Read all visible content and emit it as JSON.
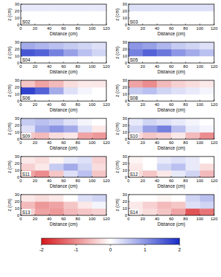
{
  "chart_data": [
    {
      "type": "heatmap",
      "title": "S02",
      "xlabel": "Distance (cm)",
      "ylabel": "z (cm)",
      "xlim": [
        0,
        120
      ],
      "ylim": [
        0,
        30
      ],
      "xticks": [
        0,
        20,
        40,
        60,
        80,
        100,
        120
      ],
      "yticks": [
        0,
        10,
        20,
        30
      ],
      "x_edges": [
        0,
        20,
        40,
        60,
        80,
        100,
        120
      ],
      "y_edges": [
        0,
        10,
        20,
        30
      ],
      "cells": [
        [
          0,
          0,
          0,
          0,
          0,
          0
        ],
        [
          0,
          0,
          0,
          0,
          0,
          0
        ],
        [
          0.2,
          0.2,
          0.2,
          0.2,
          0.2,
          0.2
        ]
      ]
    },
    {
      "type": "heatmap",
      "title": "S03",
      "xlabel": "Distance (cm)",
      "ylabel": "z (cm)",
      "xlim": [
        0,
        120
      ],
      "ylim": [
        0,
        30
      ],
      "xticks": [
        0,
        20,
        40,
        60,
        80,
        100,
        120
      ],
      "yticks": [
        0,
        10,
        20,
        30
      ],
      "x_edges": [
        0,
        20,
        40,
        60,
        80,
        100,
        120
      ],
      "y_edges": [
        0,
        10,
        20,
        30
      ],
      "cells": [
        [
          0,
          0,
          0,
          0,
          0,
          0
        ],
        [
          0,
          0,
          0,
          0,
          0,
          0
        ],
        [
          0.3,
          0.3,
          0.3,
          0.3,
          0.3,
          0.3
        ]
      ]
    },
    {
      "type": "heatmap",
      "title": "S04",
      "xlabel": "Distance (cm)",
      "ylabel": "z (cm)",
      "xlim": [
        0,
        120
      ],
      "ylim": [
        0,
        30
      ],
      "xticks": [
        0,
        20,
        40,
        60,
        80,
        100,
        120
      ],
      "yticks": [
        0,
        10,
        20,
        30
      ],
      "x_edges": [
        0,
        20,
        40,
        60,
        80,
        100,
        120
      ],
      "y_edges": [
        0,
        10,
        20,
        30
      ],
      "cells": [
        [
          0,
          0,
          0,
          0,
          0,
          0
        ],
        [
          1.6,
          1.5,
          1.2,
          0.9,
          0.6,
          0.4
        ],
        [
          0.8,
          0.7,
          0.6,
          0.5,
          0.4,
          0.3
        ]
      ]
    },
    {
      "type": "heatmap",
      "title": "S05",
      "xlabel": "Distance (cm)",
      "ylabel": "z (cm)",
      "xlim": [
        0,
        120
      ],
      "ylim": [
        0,
        30
      ],
      "xticks": [
        0,
        20,
        40,
        60,
        80,
        100,
        120
      ],
      "yticks": [
        0,
        10,
        20,
        30
      ],
      "x_edges": [
        0,
        20,
        40,
        60,
        80,
        100,
        120
      ],
      "y_edges": [
        0,
        10,
        20,
        30
      ],
      "cells": [
        [
          0,
          0,
          0,
          0,
          0,
          0
        ],
        [
          1.2,
          1.5,
          1.3,
          1.0,
          0.8,
          0.6
        ],
        [
          1.0,
          0.9,
          0.7,
          0.5,
          0.4,
          0.3
        ]
      ]
    },
    {
      "type": "heatmap",
      "title": "S06",
      "xlabel": "Distance (cm)",
      "ylabel": "z (cm)",
      "xlim": [
        0,
        120
      ],
      "ylim": [
        0,
        30
      ],
      "xticks": [
        0,
        20,
        40,
        60,
        80,
        100,
        120
      ],
      "yticks": [
        0,
        10,
        20,
        30
      ],
      "x_edges": [
        0,
        20,
        40,
        60,
        80,
        100,
        120
      ],
      "y_edges": [
        0,
        10,
        20,
        30
      ],
      "cells": [
        [
          0,
          0,
          0,
          0,
          0,
          0
        ],
        [
          1.8,
          1.5,
          0.8,
          0.3,
          0.1,
          0
        ],
        [
          -0.5,
          -0.8,
          -0.6,
          -0.3,
          -0.2,
          -0.2
        ]
      ]
    },
    {
      "type": "heatmap",
      "title": "S08",
      "xlabel": "Distance (cm)",
      "ylabel": "z (cm)",
      "xlim": [
        0,
        120
      ],
      "ylim": [
        0,
        30
      ],
      "xticks": [
        0,
        20,
        40,
        60,
        80,
        100,
        120
      ],
      "yticks": [
        0,
        10,
        20,
        30
      ],
      "x_edges": [
        0,
        20,
        40,
        60,
        80,
        100,
        120
      ],
      "y_edges": [
        0,
        10,
        20,
        30
      ],
      "cells": [
        [
          0,
          0,
          0,
          0,
          0,
          0
        ],
        [
          0.5,
          0.6,
          0.4,
          0.3,
          0.2,
          0.1
        ],
        [
          -0.8,
          -1.0,
          -0.6,
          -0.4,
          -0.3,
          -0.2
        ]
      ]
    },
    {
      "type": "heatmap",
      "title": "S09",
      "xlabel": "Distance (cm)",
      "ylabel": "z (cm)",
      "xlim": [
        0,
        120
      ],
      "ylim": [
        0,
        30
      ],
      "xticks": [
        0,
        20,
        40,
        60,
        80,
        100,
        120
      ],
      "yticks": [
        0,
        10,
        20,
        30
      ],
      "x_edges": [
        0,
        20,
        40,
        60,
        80,
        100,
        120
      ],
      "y_edges": [
        0,
        10,
        20,
        30
      ],
      "cells": [
        [
          -0.5,
          -0.6,
          -0.3,
          -0.2,
          -0.8,
          -0.9
        ],
        [
          0.3,
          0.8,
          1.0,
          0.8,
          0.3,
          -0.2
        ],
        [
          0.5,
          0.6,
          0.5,
          0.3,
          0.1,
          0
        ]
      ]
    },
    {
      "type": "heatmap",
      "title": "S10",
      "xlabel": "Distance (cm)",
      "ylabel": "z (cm)",
      "xlim": [
        0,
        120
      ],
      "ylim": [
        0,
        30
      ],
      "xticks": [
        0,
        20,
        40,
        60,
        80,
        100,
        120
      ],
      "yticks": [
        0,
        10,
        20,
        30
      ],
      "x_edges": [
        0,
        20,
        40,
        60,
        80,
        100,
        120
      ],
      "y_edges": [
        0,
        10,
        20,
        30
      ],
      "cells": [
        [
          -0.3,
          -0.5,
          -0.4,
          -0.2,
          -0.6,
          -1.0
        ],
        [
          0.4,
          0.9,
          1.2,
          0.6,
          0.2,
          0.1
        ],
        [
          0.2,
          0.4,
          0.3,
          0.2,
          0.1,
          0
        ]
      ]
    },
    {
      "type": "heatmap",
      "title": "S11",
      "xlabel": "Distance (cm)",
      "ylabel": "z (cm)",
      "xlim": [
        0,
        120
      ],
      "ylim": [
        0,
        30
      ],
      "xticks": [
        0,
        20,
        40,
        60,
        80,
        100,
        120
      ],
      "yticks": [
        0,
        10,
        20,
        30
      ],
      "x_edges": [
        0,
        20,
        40,
        60,
        80,
        100,
        120
      ],
      "y_edges": [
        0,
        10,
        20,
        30
      ],
      "cells": [
        [
          -0.8,
          -1.0,
          -0.5,
          0.3,
          0.6,
          -0.5
        ],
        [
          -0.4,
          -0.2,
          0.5,
          0.8,
          0.4,
          -0.3
        ],
        [
          -0.2,
          -0.3,
          -0.1,
          0.2,
          0.3,
          -0.4
        ]
      ]
    },
    {
      "type": "heatmap",
      "title": "S12",
      "xlabel": "Distance (cm)",
      "ylabel": "z (cm)",
      "xlim": [
        0,
        120
      ],
      "ylim": [
        0,
        30
      ],
      "xticks": [
        0,
        20,
        40,
        60,
        80,
        100,
        120
      ],
      "yticks": [
        0,
        10,
        20,
        30
      ],
      "x_edges": [
        0,
        20,
        40,
        60,
        80,
        100,
        120
      ],
      "y_edges": [
        0,
        10,
        20,
        30
      ],
      "cells": [
        [
          -0.3,
          -0.5,
          -0.2,
          0.2,
          0.4,
          -0.6
        ],
        [
          -0.2,
          0,
          0.4,
          0.6,
          0.2,
          -0.3
        ],
        [
          -0.1,
          0,
          0.2,
          0.3,
          0.2,
          0
        ]
      ]
    },
    {
      "type": "heatmap",
      "title": "S13",
      "xlabel": "Distance (cm)",
      "ylabel": "z (cm)",
      "xlim": [
        0,
        120
      ],
      "ylim": [
        0,
        30
      ],
      "xticks": [
        0,
        20,
        40,
        60,
        80,
        100,
        120
      ],
      "yticks": [
        0,
        10,
        20,
        30
      ],
      "x_edges": [
        0,
        20,
        40,
        60,
        80,
        100,
        120
      ],
      "y_edges": [
        0,
        10,
        20,
        30
      ],
      "cells": [
        [
          -0.4,
          -0.8,
          -0.9,
          -0.6,
          -0.5,
          -0.4
        ],
        [
          -0.6,
          -0.9,
          -0.8,
          -0.5,
          -0.2,
          0.1
        ],
        [
          -0.2,
          -0.3,
          -0.2,
          0,
          0.3,
          0.4
        ]
      ]
    },
    {
      "type": "heatmap",
      "title": "S14",
      "xlabel": "Distance (cm)",
      "ylabel": "z (cm)",
      "xlim": [
        0,
        120
      ],
      "ylim": [
        0,
        30
      ],
      "xticks": [
        0,
        20,
        40,
        60,
        80,
        100,
        120
      ],
      "yticks": [
        0,
        10,
        20,
        30
      ],
      "x_edges": [
        0,
        20,
        40,
        60,
        80,
        100,
        120
      ],
      "y_edges": [
        0,
        10,
        20,
        30
      ],
      "cells": [
        [
          -0.2,
          -0.3,
          -0.5,
          -0.8,
          -1.5,
          -1.2
        ],
        [
          -0.2,
          -0.4,
          -0.6,
          -0.5,
          0.3,
          0.4
        ],
        [
          0,
          0,
          -0.1,
          0,
          0.4,
          0.6
        ]
      ]
    },
    {
      "type": "colorbar",
      "clim": [
        -2,
        2
      ],
      "ticks": [
        -2,
        -1,
        0,
        1,
        2
      ]
    }
  ]
}
